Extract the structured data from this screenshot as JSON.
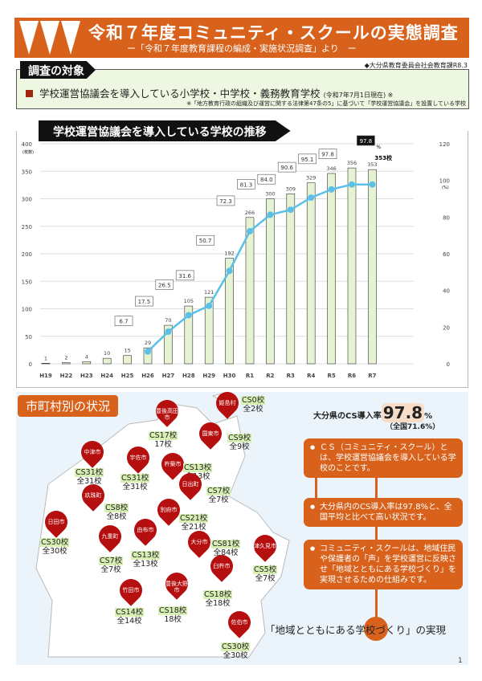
{
  "header": {
    "title": "令和７年度コミュニティ・スクールの実態調査",
    "subtitle": "ー「令和７年度教育課程の編成・実施状況調査」より　ー",
    "source": "◆大分県教育委員会社会教育課R8.3"
  },
  "target": {
    "tag": "調査の対象",
    "main": "学校運営協議会を導入している小学校・中学校・義務教育学校",
    "date": "(令和7年7月1日現在) ※",
    "note": "※「地方教育行政の組織及び運営に関する法律第47条の5」に基づいて「学校運営協議会」を設置している学校"
  },
  "chart_data": {
    "type": "bar+line",
    "title": "学校運営協議会を導入している学校の推移",
    "categories": [
      "H19",
      "H22",
      "H23",
      "H24",
      "H25",
      "H26",
      "H27",
      "H28",
      "H29",
      "H30",
      "R1",
      "R2",
      "R3",
      "R4",
      "R5",
      "R6",
      "R7"
    ],
    "series": [
      {
        "type": "bar",
        "axis": "left",
        "values": [
          1,
          2,
          4,
          10,
          15,
          29,
          70,
          105,
          121,
          192,
          266,
          300,
          309,
          329,
          346,
          356,
          353
        ]
      },
      {
        "type": "line",
        "axis": "right",
        "values": [
          null,
          null,
          null,
          null,
          null,
          6.7,
          17.5,
          26.5,
          31.6,
          50.7,
          72.3,
          81.3,
          84.0,
          90.6,
          95.1,
          97.8,
          97.8
        ]
      }
    ],
    "ylabel": "(校数)",
    "y2label": "(%)",
    "ylim": [
      0,
      400
    ],
    "y2lim": [
      0,
      120
    ],
    "yticks": [
      0,
      50,
      100,
      150,
      200,
      250,
      300,
      350,
      400
    ],
    "y2ticks": [
      0,
      20,
      40,
      60,
      80,
      100,
      120
    ],
    "last_bar_label": "353校",
    "last_rate_unit": "%",
    "grid": true,
    "colors": {
      "bar": "#e6f3d3",
      "bar_edge": "#333",
      "line": "#5bc0e8"
    }
  },
  "map": {
    "tag": "市町村別の状況",
    "municipalities": [
      {
        "name": "姫島村",
        "cs": "CS0校",
        "total": "全2校"
      },
      {
        "name": "豊後高田市",
        "cs": "CS17校",
        "total": "17校"
      },
      {
        "name": "国東市",
        "cs": "CS9校",
        "total": "全9校"
      },
      {
        "name": "中津市",
        "cs": "CS31校",
        "total": "全31校"
      },
      {
        "name": "宇佐市",
        "cs": "CS31校",
        "total": "全31校"
      },
      {
        "name": "杵築市",
        "cs": "CS13校",
        "total": "全13校"
      },
      {
        "name": "日出町",
        "cs": "CS7校",
        "total": "全7校"
      },
      {
        "name": "玖珠町",
        "cs": "CS8校",
        "total": "全8校"
      },
      {
        "name": "日田市",
        "cs": "CS30校",
        "total": "全30校"
      },
      {
        "name": "別府市",
        "cs": "CS21校",
        "total": "全21校"
      },
      {
        "name": "由布市",
        "cs": "CS13校",
        "total": "全13校"
      },
      {
        "name": "九重町",
        "cs": "CS7校",
        "total": "全7校"
      },
      {
        "name": "大分市",
        "cs": "CS81校",
        "total": "全84校"
      },
      {
        "name": "津久見市",
        "cs": "CS5校",
        "total": "全7校"
      },
      {
        "name": "臼杵市",
        "cs": "CS18校",
        "total": "全18校"
      },
      {
        "name": "竹田市",
        "cs": "CS14校",
        "total": "全14校"
      },
      {
        "name": "豊後大野市",
        "cs": "CS18校",
        "total": "18校"
      },
      {
        "name": "佐伯市",
        "cs": "CS30校",
        "total": "全30校"
      }
    ]
  },
  "summary": {
    "rate_label": "大分県のCS導入率",
    "rate": "97.8",
    "rate_unit": "%",
    "national": "（全国71.6%）",
    "points": [
      "ＣＳ（コミュニティ・スクール）とは、学校運営協議会を導入している学校のことです。",
      "大分県内のCS導入率は97.8%と、全国平均と比べて高い状況です。",
      "コミュニティ・スクールは、地域住民や保護者の「声」を学校運営に反映させ「地域とともにある学校づくり」を実現させるための仕組みです。"
    ],
    "slogan": "「地域とともにある学校づくり」の実現"
  },
  "page_number": "1"
}
